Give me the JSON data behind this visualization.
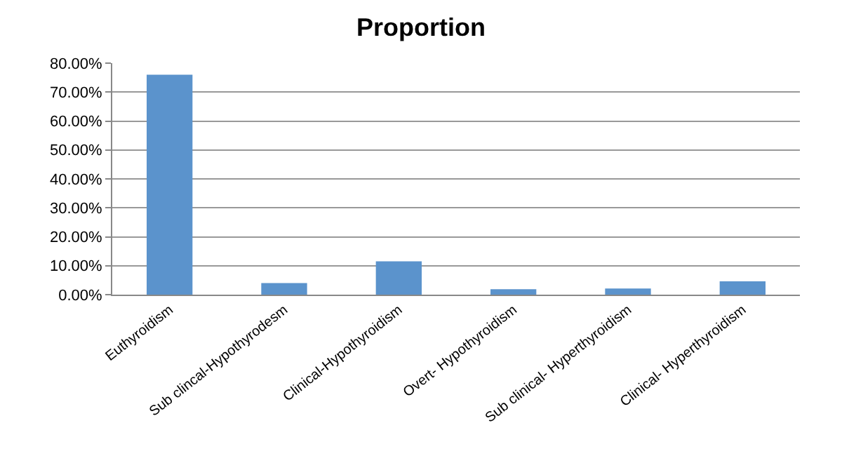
{
  "chart_data": {
    "type": "bar",
    "title": "Proportion",
    "categories": [
      "Euthyroidism",
      "Sub clincal-Hypothyrodesm",
      "Clinical-Hypothyroidism",
      "Overt- Hypothyroidism",
      "Sub clinical- Hyperthyroidism",
      "Clinical- Hyperthyroidism"
    ],
    "values": [
      76,
      4.0,
      11.5,
      1.9,
      2.1,
      4.6
    ],
    "color": "#5b93cc",
    "ylim": [
      0,
      80
    ],
    "yticks": [
      {
        "value": 0,
        "label": "0.00%"
      },
      {
        "value": 10,
        "label": "10.00%"
      },
      {
        "value": 20,
        "label": "20.00%"
      },
      {
        "value": 30,
        "label": "30.00%"
      },
      {
        "value": 40,
        "label": "40.00%"
      },
      {
        "value": 50,
        "label": "50.00%"
      },
      {
        "value": 60,
        "label": "60.00%"
      },
      {
        "value": 70,
        "label": "70.00%"
      },
      {
        "value": 80,
        "label": "80.00%"
      }
    ],
    "grid": "y"
  }
}
